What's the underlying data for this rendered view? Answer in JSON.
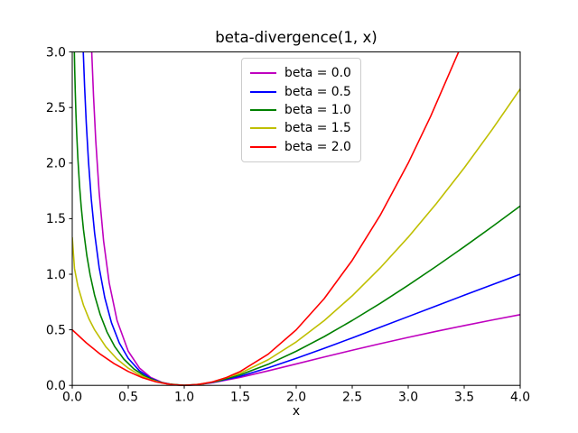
{
  "figure": {
    "background_color": "#ffffff",
    "axis_color": "#000000",
    "legend_border_color": "#cccccc"
  },
  "chart_data": {
    "type": "line",
    "title": "beta-divergence(1, x)",
    "xlabel": "x",
    "ylabel": "",
    "xlim": [
      0.0,
      4.0
    ],
    "ylim": [
      0.0,
      3.0
    ],
    "grid": false,
    "legend_position": "upper center",
    "xtick_values": [
      0.0,
      0.5,
      1.0,
      1.5,
      2.0,
      2.5,
      3.0,
      3.5,
      4.0
    ],
    "xtick_labels": [
      "0.0",
      "0.5",
      "1.0",
      "1.5",
      "2.0",
      "2.5",
      "3.0",
      "3.5",
      "4.0"
    ],
    "ytick_values": [
      0.0,
      0.5,
      1.0,
      1.5,
      2.0,
      2.5,
      3.0
    ],
    "ytick_labels": [
      "0.0",
      "0.5",
      "1.0",
      "1.5",
      "2.0",
      "2.5",
      "3.0"
    ],
    "series": [
      {
        "name": "beta = 0.0",
        "color": "#bf00bf",
        "x": [
          0.174,
          0.19,
          0.21,
          0.24,
          0.28,
          0.33,
          0.4,
          0.5,
          0.6,
          0.7,
          0.8,
          0.9,
          1.0,
          1.1,
          1.25,
          1.5,
          1.75,
          2.0,
          2.25,
          2.5,
          2.75,
          3.0,
          3.25,
          3.5,
          3.75,
          4.0
        ],
        "y": [
          3.0,
          2.603,
          2.201,
          1.74,
          1.298,
          0.922,
          0.584,
          0.307,
          0.156,
          0.072,
          0.027,
          0.006,
          0.0,
          0.004,
          0.023,
          0.072,
          0.131,
          0.193,
          0.255,
          0.316,
          0.375,
          0.432,
          0.486,
          0.538,
          0.588,
          0.636
        ]
      },
      {
        "name": "beta = 0.5",
        "color": "#0000ff",
        "x": [
          0.0985,
          0.11,
          0.125,
          0.145,
          0.17,
          0.2,
          0.24,
          0.29,
          0.35,
          0.42,
          0.5,
          0.6,
          0.7,
          0.8,
          0.9,
          1.0,
          1.1,
          1.25,
          1.5,
          1.75,
          2.0,
          2.25,
          2.5,
          2.75,
          3.0,
          3.25,
          3.5,
          3.75,
          4.0
        ],
        "y": [
          3.0,
          2.694,
          2.364,
          2.014,
          1.675,
          1.367,
          1.062,
          0.791,
          0.564,
          0.382,
          0.243,
          0.131,
          0.064,
          0.025,
          0.006,
          0.0,
          0.005,
          0.025,
          0.082,
          0.158,
          0.243,
          0.333,
          0.427,
          0.523,
          0.619,
          0.715,
          0.811,
          0.906,
          1.0
        ]
      },
      {
        "name": "beta = 1.0",
        "color": "#008000",
        "x": [
          0.0187,
          0.022,
          0.027,
          0.033,
          0.04,
          0.05,
          0.065,
          0.08,
          0.1,
          0.13,
          0.16,
          0.2,
          0.25,
          0.31,
          0.38,
          0.46,
          0.55,
          0.65,
          0.75,
          0.85,
          1.0,
          1.15,
          1.3,
          1.5,
          1.75,
          2.0,
          2.25,
          2.5,
          2.75,
          3.0,
          3.25,
          3.5,
          3.75,
          4.0
        ],
        "y": [
          3.0,
          2.839,
          2.639,
          2.444,
          2.259,
          2.046,
          1.798,
          1.606,
          1.403,
          1.17,
          0.993,
          0.809,
          0.636,
          0.481,
          0.348,
          0.237,
          0.148,
          0.081,
          0.038,
          0.013,
          0.0,
          0.01,
          0.038,
          0.095,
          0.19,
          0.307,
          0.439,
          0.584,
          0.738,
          0.901,
          1.071,
          1.247,
          1.428,
          1.614
        ]
      },
      {
        "name": "beta = 1.5",
        "color": "#bfbf00",
        "x": [
          0.0,
          0.02,
          0.05,
          0.1,
          0.15,
          0.2,
          0.3,
          0.4,
          0.5,
          0.6,
          0.7,
          0.8,
          0.9,
          1.0,
          1.1,
          1.25,
          1.5,
          1.75,
          2.0,
          2.25,
          2.5,
          2.75,
          3.0,
          3.25,
          3.5,
          3.75,
          4.0
        ],
        "y": [
          1.333,
          1.052,
          0.894,
          0.722,
          0.597,
          0.499,
          0.347,
          0.237,
          0.155,
          0.094,
          0.05,
          0.022,
          0.005,
          0.0,
          0.005,
          0.029,
          0.109,
          0.231,
          0.391,
          0.583,
          0.806,
          1.057,
          1.333,
          1.634,
          1.957,
          2.302,
          2.667
        ]
      },
      {
        "name": "beta = 2.0",
        "color": "#ff0000",
        "x": [
          0.0,
          0.125,
          0.25,
          0.375,
          0.5,
          0.625,
          0.75,
          0.875,
          1.0,
          1.125,
          1.25,
          1.375,
          1.5,
          1.75,
          2.0,
          2.25,
          2.5,
          2.75,
          3.0,
          3.2,
          3.45
        ],
        "y": [
          0.5,
          0.383,
          0.281,
          0.195,
          0.125,
          0.07,
          0.031,
          0.008,
          0.0,
          0.008,
          0.031,
          0.07,
          0.125,
          0.281,
          0.5,
          0.781,
          1.125,
          1.531,
          2.0,
          2.42,
          3.0
        ]
      }
    ]
  }
}
